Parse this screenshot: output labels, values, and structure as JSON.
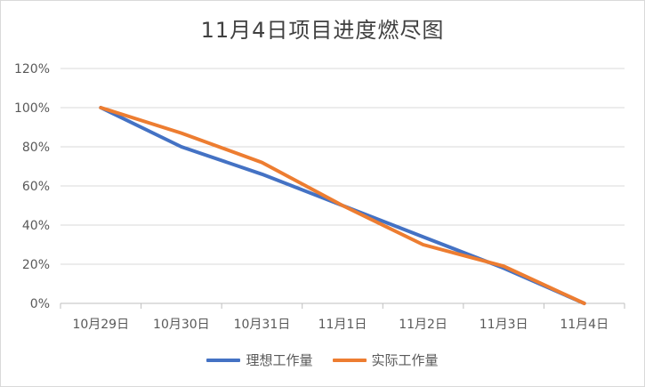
{
  "chart_data": {
    "type": "line",
    "title": "11月4日项目进度燃尽图",
    "categories": [
      "10月29日",
      "10月30日",
      "10月31日",
      "11月1日",
      "11月2日",
      "11月3日",
      "11月4日"
    ],
    "y_ticks": [
      "0%",
      "20%",
      "40%",
      "60%",
      "80%",
      "100%",
      "120%"
    ],
    "ylim": [
      0,
      120
    ],
    "grid": true,
    "legend_position": "bottom",
    "series": [
      {
        "name": "理想工作量",
        "color": "#4472c4",
        "values": [
          100,
          80,
          66,
          50,
          34,
          18,
          0
        ]
      },
      {
        "name": "实际工作量",
        "color": "#ed7d31",
        "values": [
          100,
          87,
          72,
          50,
          30,
          19,
          0
        ]
      }
    ]
  }
}
